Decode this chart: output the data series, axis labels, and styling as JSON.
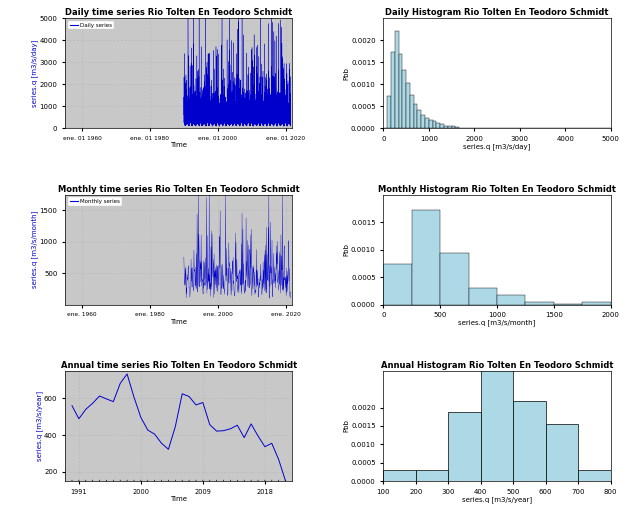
{
  "title_daily_ts": "Daily time series Rio Tolten En Teodoro Schmidt",
  "title_daily_hist": "Daily Histogram Rio Tolten En Teodoro Schmidt",
  "title_monthly_ts": "Monthly time series Rio Tolten En Teodoro Schmidt",
  "title_monthly_hist": "Monthly Histogram Rio Tolten En Teodoro Schmidt",
  "title_annual_ts": "Annual time series Rio Tolten En Teodoro Schmidt",
  "title_annual_hist": "Annual Histogram Rio Tolten En Teodoro Schmidt",
  "title_color": "#000000",
  "ts_color": "#0000cc",
  "ts_label_color": "#0000cc",
  "hist_face_color": "#add8e6",
  "hist_edge_color": "#000000",
  "grid_color": "#bbbbbb",
  "bg_color": "#c8c8c8",
  "daily_ylabel": "series.q [m3/s/day]",
  "monthly_ylabel": "series.q [m3/s/month]",
  "annual_ylabel": "series.q [m3/s/year]",
  "daily_xlabel": "series.q [m3/s/day]",
  "monthly_xlabel": "series.q [m3/s/month]",
  "annual_xlabel": "series.q [m3/s/year]",
  "time_label": "Time",
  "pbb_label": "Pbb",
  "daily_legend": "Daily series",
  "monthly_legend": "Monthly series",
  "daily_ts_xticks_labels": [
    "ene. 01 1960",
    "ene. 01 1980",
    "ene. 01 2000",
    "ene. 01 2020"
  ],
  "daily_ts_xticks_years": [
    1960,
    1980,
    2000,
    2020
  ],
  "daily_hist_xticks": [
    0,
    1000,
    2000,
    3000,
    4000,
    5000
  ],
  "monthly_ts_xticks_labels": [
    "ene. 1960",
    "ene. 1980",
    "ene. 2000",
    "ene. 2020"
  ],
  "monthly_ts_xticks_years": [
    1960,
    1980,
    2000,
    2020
  ],
  "monthly_hist_xticks": [
    0,
    500,
    1000,
    1500,
    2000
  ],
  "annual_ts_xticks_labels": [
    "1991",
    "2000",
    "2009",
    "2018"
  ],
  "annual_ts_xticks_years": [
    1991,
    2000,
    2009,
    2018
  ],
  "annual_hist_xticks": [
    100,
    200,
    300,
    400,
    500,
    600,
    700,
    800
  ]
}
